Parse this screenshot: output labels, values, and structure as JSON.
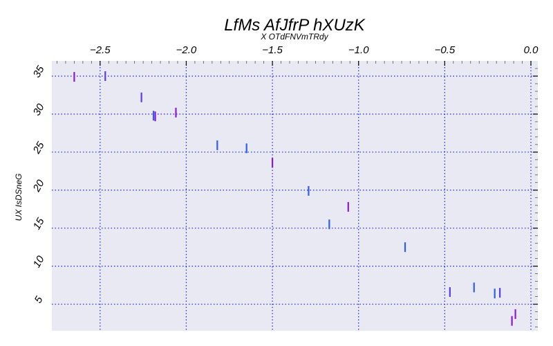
{
  "chart_data": {
    "type": "scatter",
    "title": "LfMs AfJfrP hXUzK",
    "xlabel": "X OTdFNVmTRdy",
    "ylabel": "UX IsDSneG",
    "xlim": [
      -2.78,
      0.04
    ],
    "ylim": [
      1.5,
      37
    ],
    "x_axis_position": "top",
    "x_ticks": [
      -2.5,
      -2.0,
      -1.5,
      -1.0,
      -0.5,
      0.0
    ],
    "x_tick_labels": [
      "−2.5",
      "−2.0",
      "−1.5",
      "−1.0",
      "−0.5",
      "0.0"
    ],
    "y_ticks": [
      5,
      10,
      15,
      20,
      25,
      30,
      35
    ],
    "y_tick_labels": [
      "5",
      "10",
      "15",
      "20",
      "25",
      "30",
      "35"
    ],
    "grid": true,
    "grid_style": "dotted",
    "grid_color": "#1a1aff",
    "background_color": "#e9e9f3",
    "marker": "vertical-line",
    "points": [
      {
        "x": -2.65,
        "y": 34.9,
        "color": "#8a18d8"
      },
      {
        "x": -2.47,
        "y": 35.0,
        "color": "#5a3aee"
      },
      {
        "x": -2.26,
        "y": 32.2,
        "color": "#5a3aee"
      },
      {
        "x": -2.19,
        "y": 29.8,
        "color": "#2f5cf5"
      },
      {
        "x": -2.18,
        "y": 29.7,
        "color": "#8a18d8"
      },
      {
        "x": -2.06,
        "y": 30.2,
        "color": "#8a18d8"
      },
      {
        "x": -1.82,
        "y": 25.9,
        "color": "#2f5cf5"
      },
      {
        "x": -1.65,
        "y": 25.5,
        "color": "#2f5cf5"
      },
      {
        "x": -1.5,
        "y": 23.6,
        "color": "#8a18d8"
      },
      {
        "x": -1.29,
        "y": 19.9,
        "color": "#2f5cf5"
      },
      {
        "x": -1.06,
        "y": 17.8,
        "color": "#8a18d8"
      },
      {
        "x": -1.17,
        "y": 15.5,
        "color": "#2f5cf5"
      },
      {
        "x": -0.73,
        "y": 12.5,
        "color": "#2f5cf5"
      },
      {
        "x": -0.47,
        "y": 6.6,
        "color": "#5a3aee"
      },
      {
        "x": -0.33,
        "y": 7.2,
        "color": "#2f5cf5"
      },
      {
        "x": -0.21,
        "y": 6.4,
        "color": "#2f5cf5"
      },
      {
        "x": -0.18,
        "y": 6.5,
        "color": "#5a3aee"
      },
      {
        "x": -0.09,
        "y": 3.7,
        "color": "#8a18d8"
      },
      {
        "x": -0.11,
        "y": 2.8,
        "color": "#8a18d8"
      }
    ]
  }
}
